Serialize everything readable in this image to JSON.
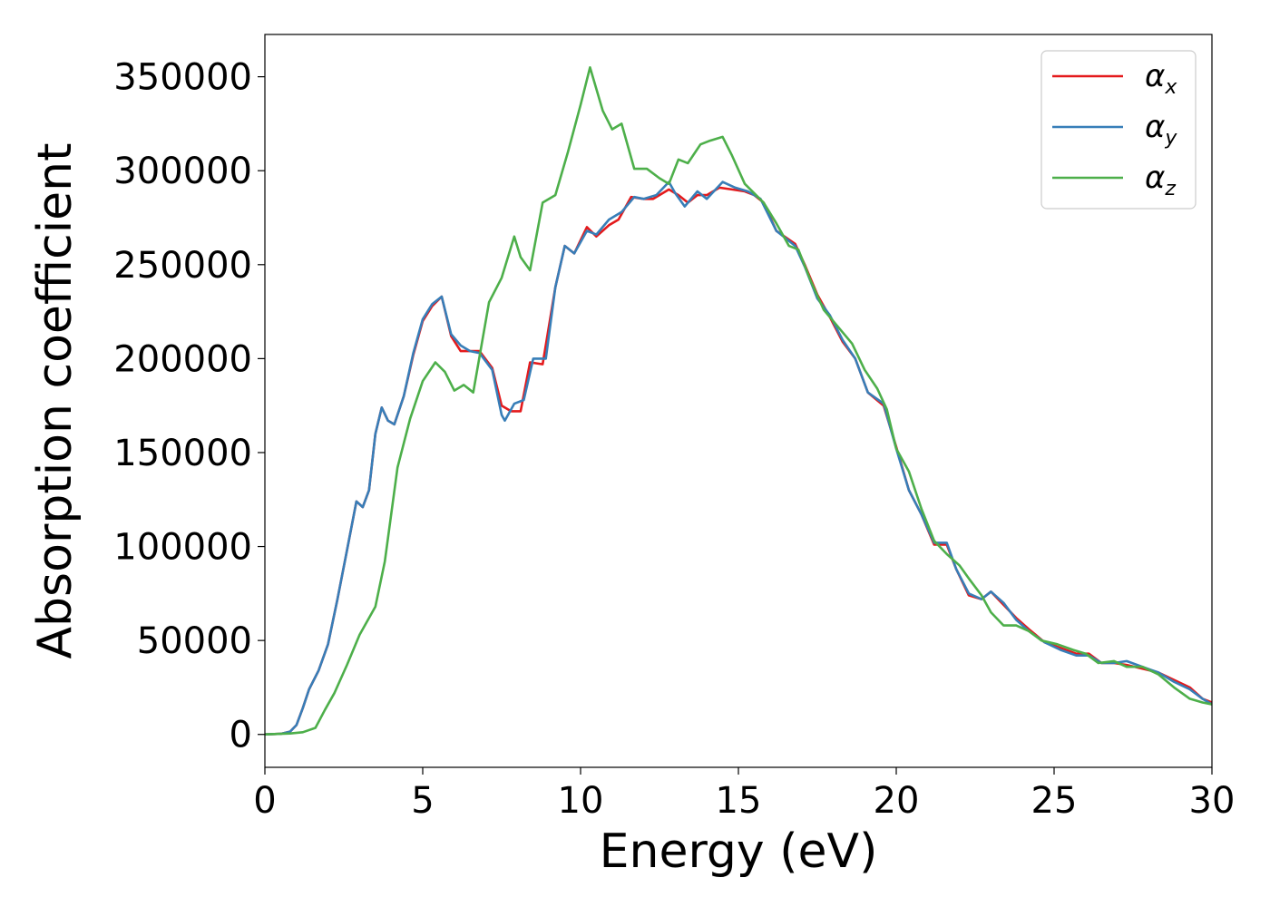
{
  "chart_data": {
    "type": "line",
    "title": "",
    "xlabel": "Energy (eV)",
    "ylabel": "Absorption coefficient",
    "xlim": [
      0,
      30
    ],
    "ylim": [
      -17500,
      372500
    ],
    "xticks": [
      0,
      5,
      10,
      15,
      20,
      25,
      30
    ],
    "xtick_labels": [
      "0",
      "5",
      "10",
      "15",
      "20",
      "25",
      "30"
    ],
    "yticks": [
      0,
      50000,
      100000,
      150000,
      200000,
      250000,
      300000,
      350000
    ],
    "ytick_labels": [
      "0",
      "50000",
      "100000",
      "150000",
      "200000",
      "250000",
      "300000",
      "350000"
    ],
    "grid": false,
    "legend_position": "top-right",
    "series": [
      {
        "name": "α",
        "subscript": "x",
        "color": "#e41a1c",
        "points": [
          [
            0,
            0
          ],
          [
            0.5,
            300
          ],
          [
            0.8,
            1500
          ],
          [
            1.0,
            5000
          ],
          [
            1.2,
            14000
          ],
          [
            1.4,
            24000
          ],
          [
            1.7,
            34000
          ],
          [
            2.0,
            48000
          ],
          [
            2.3,
            72000
          ],
          [
            2.6,
            98000
          ],
          [
            2.9,
            124000
          ],
          [
            3.1,
            121000
          ],
          [
            3.3,
            130000
          ],
          [
            3.5,
            160000
          ],
          [
            3.7,
            174000
          ],
          [
            3.9,
            167000
          ],
          [
            4.1,
            165000
          ],
          [
            4.4,
            180000
          ],
          [
            4.7,
            202000
          ],
          [
            5.0,
            220000
          ],
          [
            5.3,
            228000
          ],
          [
            5.6,
            233000
          ],
          [
            5.9,
            212000
          ],
          [
            6.2,
            204000
          ],
          [
            6.5,
            204000
          ],
          [
            6.8,
            204000
          ],
          [
            7.2,
            195000
          ],
          [
            7.5,
            175000
          ],
          [
            7.8,
            172000
          ],
          [
            8.1,
            172000
          ],
          [
            8.4,
            198000
          ],
          [
            8.8,
            197000
          ],
          [
            9.2,
            238000
          ],
          [
            9.5,
            260000
          ],
          [
            9.8,
            256000
          ],
          [
            10.2,
            270000
          ],
          [
            10.5,
            265000
          ],
          [
            10.9,
            271000
          ],
          [
            11.2,
            274000
          ],
          [
            11.6,
            286000
          ],
          [
            12.0,
            285000
          ],
          [
            12.3,
            285000
          ],
          [
            12.8,
            290000
          ],
          [
            13.1,
            287000
          ],
          [
            13.4,
            283000
          ],
          [
            13.7,
            287000
          ],
          [
            14.0,
            287000
          ],
          [
            14.4,
            291000
          ],
          [
            14.8,
            290000
          ],
          [
            15.2,
            289000
          ],
          [
            15.5,
            287000
          ],
          [
            15.8,
            283000
          ],
          [
            16.2,
            268000
          ],
          [
            16.8,
            261000
          ],
          [
            17.1,
            250000
          ],
          [
            17.5,
            234000
          ],
          [
            17.9,
            222000
          ],
          [
            18.3,
            209000
          ],
          [
            18.7,
            200000
          ],
          [
            19.1,
            182000
          ],
          [
            19.6,
            175000
          ],
          [
            20.0,
            153000
          ],
          [
            20.4,
            130000
          ],
          [
            20.8,
            117000
          ],
          [
            21.2,
            101000
          ],
          [
            21.6,
            101000
          ],
          [
            21.9,
            88000
          ],
          [
            22.3,
            74000
          ],
          [
            22.7,
            72000
          ],
          [
            23.0,
            76000
          ],
          [
            23.4,
            69000
          ],
          [
            23.8,
            62000
          ],
          [
            24.2,
            56000
          ],
          [
            24.7,
            49000
          ],
          [
            25.2,
            46000
          ],
          [
            25.7,
            43000
          ],
          [
            26.1,
            43000
          ],
          [
            26.5,
            38000
          ],
          [
            26.9,
            38000
          ],
          [
            27.3,
            37000
          ],
          [
            27.8,
            35000
          ],
          [
            28.3,
            33000
          ],
          [
            28.8,
            29000
          ],
          [
            29.3,
            25000
          ],
          [
            29.7,
            19000
          ],
          [
            30.0,
            17000
          ]
        ]
      },
      {
        "name": "α",
        "subscript": "y",
        "color": "#377eb8",
        "points": [
          [
            0,
            0
          ],
          [
            0.5,
            300
          ],
          [
            0.8,
            1500
          ],
          [
            1.0,
            5000
          ],
          [
            1.2,
            14000
          ],
          [
            1.4,
            24000
          ],
          [
            1.7,
            34000
          ],
          [
            2.0,
            48000
          ],
          [
            2.3,
            72000
          ],
          [
            2.6,
            98000
          ],
          [
            2.9,
            124000
          ],
          [
            3.1,
            121000
          ],
          [
            3.3,
            130000
          ],
          [
            3.5,
            160000
          ],
          [
            3.7,
            174000
          ],
          [
            3.9,
            167000
          ],
          [
            4.1,
            165000
          ],
          [
            4.4,
            180000
          ],
          [
            4.7,
            203000
          ],
          [
            5.0,
            221000
          ],
          [
            5.3,
            229000
          ],
          [
            5.6,
            233000
          ],
          [
            5.9,
            213000
          ],
          [
            6.2,
            207000
          ],
          [
            6.5,
            204000
          ],
          [
            6.8,
            203000
          ],
          [
            7.2,
            194000
          ],
          [
            7.5,
            170000
          ],
          [
            7.6,
            167000
          ],
          [
            7.9,
            176000
          ],
          [
            8.2,
            178000
          ],
          [
            8.5,
            200000
          ],
          [
            8.9,
            200000
          ],
          [
            9.2,
            238000
          ],
          [
            9.5,
            260000
          ],
          [
            9.8,
            256000
          ],
          [
            10.2,
            268000
          ],
          [
            10.5,
            266000
          ],
          [
            10.9,
            274000
          ],
          [
            11.3,
            278000
          ],
          [
            11.7,
            286000
          ],
          [
            12.0,
            285000
          ],
          [
            12.4,
            287000
          ],
          [
            12.8,
            294000
          ],
          [
            13.0,
            288000
          ],
          [
            13.3,
            281000
          ],
          [
            13.7,
            289000
          ],
          [
            14.0,
            285000
          ],
          [
            14.5,
            294000
          ],
          [
            14.9,
            291000
          ],
          [
            15.3,
            289000
          ],
          [
            15.7,
            285000
          ],
          [
            16.2,
            268000
          ],
          [
            16.8,
            260000
          ],
          [
            17.1,
            249000
          ],
          [
            17.5,
            232000
          ],
          [
            17.9,
            223000
          ],
          [
            18.3,
            210000
          ],
          [
            18.7,
            200000
          ],
          [
            19.1,
            182000
          ],
          [
            19.6,
            176000
          ],
          [
            20.0,
            152000
          ],
          [
            20.4,
            130000
          ],
          [
            20.8,
            117000
          ],
          [
            21.2,
            102000
          ],
          [
            21.6,
            102000
          ],
          [
            21.9,
            88000
          ],
          [
            22.3,
            75000
          ],
          [
            22.7,
            72000
          ],
          [
            23.0,
            76000
          ],
          [
            23.4,
            70000
          ],
          [
            23.8,
            61000
          ],
          [
            24.2,
            55000
          ],
          [
            24.7,
            49000
          ],
          [
            25.2,
            45000
          ],
          [
            25.7,
            42000
          ],
          [
            26.1,
            42000
          ],
          [
            26.5,
            38000
          ],
          [
            26.9,
            38000
          ],
          [
            27.3,
            39000
          ],
          [
            27.8,
            36000
          ],
          [
            28.3,
            33000
          ],
          [
            28.8,
            28000
          ],
          [
            29.3,
            24000
          ],
          [
            29.7,
            19000
          ],
          [
            30.0,
            16000
          ]
        ]
      },
      {
        "name": "α",
        "subscript": "z",
        "color": "#4daf4a",
        "points": [
          [
            0,
            0
          ],
          [
            0.8,
            500
          ],
          [
            1.2,
            1200
          ],
          [
            1.6,
            3500
          ],
          [
            1.9,
            13000
          ],
          [
            2.2,
            22000
          ],
          [
            2.6,
            37000
          ],
          [
            3.0,
            53000
          ],
          [
            3.5,
            68000
          ],
          [
            3.8,
            92000
          ],
          [
            4.2,
            142000
          ],
          [
            4.6,
            168000
          ],
          [
            5.0,
            188000
          ],
          [
            5.4,
            198000
          ],
          [
            5.7,
            193000
          ],
          [
            6.0,
            183000
          ],
          [
            6.3,
            186000
          ],
          [
            6.6,
            182000
          ],
          [
            7.1,
            230000
          ],
          [
            7.5,
            243000
          ],
          [
            7.9,
            265000
          ],
          [
            8.1,
            254000
          ],
          [
            8.4,
            247000
          ],
          [
            8.8,
            283000
          ],
          [
            9.2,
            287000
          ],
          [
            9.6,
            310000
          ],
          [
            10.0,
            335000
          ],
          [
            10.3,
            355000
          ],
          [
            10.7,
            332000
          ],
          [
            11.0,
            322000
          ],
          [
            11.3,
            325000
          ],
          [
            11.7,
            301000
          ],
          [
            12.1,
            301000
          ],
          [
            12.5,
            296000
          ],
          [
            12.8,
            293000
          ],
          [
            13.1,
            306000
          ],
          [
            13.4,
            304000
          ],
          [
            13.8,
            314000
          ],
          [
            14.1,
            316000
          ],
          [
            14.5,
            318000
          ],
          [
            14.8,
            308000
          ],
          [
            15.2,
            293000
          ],
          [
            15.8,
            283000
          ],
          [
            16.2,
            272000
          ],
          [
            16.6,
            260000
          ],
          [
            16.9,
            258000
          ],
          [
            17.3,
            241000
          ],
          [
            17.7,
            226000
          ],
          [
            18.1,
            218000
          ],
          [
            18.6,
            208000
          ],
          [
            19.0,
            194000
          ],
          [
            19.4,
            184000
          ],
          [
            19.7,
            173000
          ],
          [
            20.0,
            152000
          ],
          [
            20.4,
            140000
          ],
          [
            20.8,
            120000
          ],
          [
            21.2,
            103000
          ],
          [
            21.6,
            96000
          ],
          [
            22.0,
            90000
          ],
          [
            22.3,
            83000
          ],
          [
            22.7,
            74000
          ],
          [
            23.0,
            65000
          ],
          [
            23.4,
            58000
          ],
          [
            23.8,
            58000
          ],
          [
            24.2,
            55000
          ],
          [
            24.6,
            50000
          ],
          [
            25.1,
            48000
          ],
          [
            25.6,
            45000
          ],
          [
            26.0,
            43000
          ],
          [
            26.4,
            38000
          ],
          [
            26.9,
            39000
          ],
          [
            27.3,
            36000
          ],
          [
            27.8,
            36000
          ],
          [
            28.3,
            32000
          ],
          [
            28.8,
            25000
          ],
          [
            29.3,
            19000
          ],
          [
            29.7,
            17000
          ],
          [
            30.0,
            16000
          ]
        ]
      }
    ]
  }
}
